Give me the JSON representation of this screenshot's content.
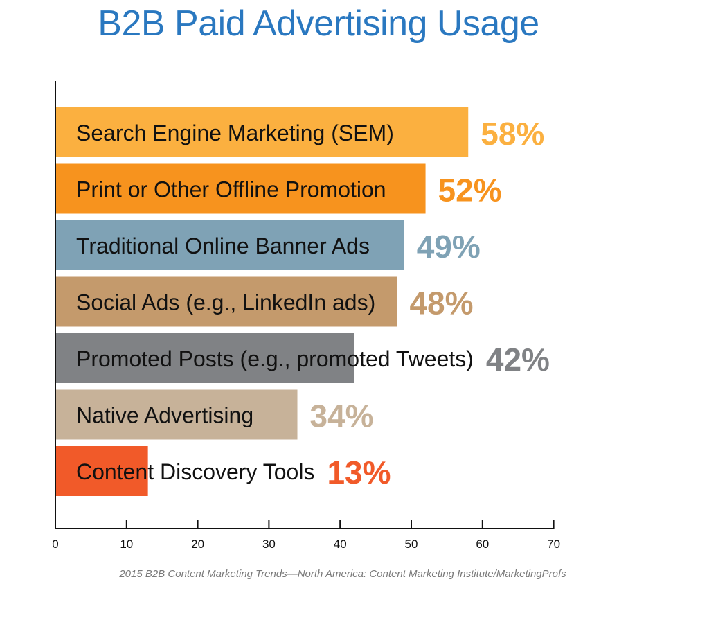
{
  "chart_data": {
    "type": "bar",
    "orientation": "horizontal",
    "title": "B2B Paid Advertising Usage",
    "categories": [
      "Search Engine Marketing (SEM)",
      "Print or Other Offline Promotion",
      "Traditional Online Banner Ads",
      "Social Ads (e.g., LinkedIn ads)",
      "Promoted Posts (e.g., promoted Tweets)",
      "Native Advertising",
      "Content Discovery Tools"
    ],
    "values": [
      58,
      52,
      49,
      48,
      42,
      34,
      13
    ],
    "value_labels": [
      "58%",
      "52%",
      "49%",
      "48%",
      "42%",
      "34%",
      "13%"
    ],
    "colors": [
      "#fbb040",
      "#f7931e",
      "#7fa2b5",
      "#c49a6c",
      "#808285",
      "#c7b299",
      "#f15a29"
    ],
    "xlim": [
      0,
      70
    ],
    "xticks": [
      "0",
      "10",
      "20",
      "30",
      "40",
      "50",
      "60",
      "70"
    ],
    "grid": false,
    "legend": "none"
  },
  "source": "2015 B2B Content Marketing Trends—North America: Content Marketing Institute/MarketingProfs"
}
